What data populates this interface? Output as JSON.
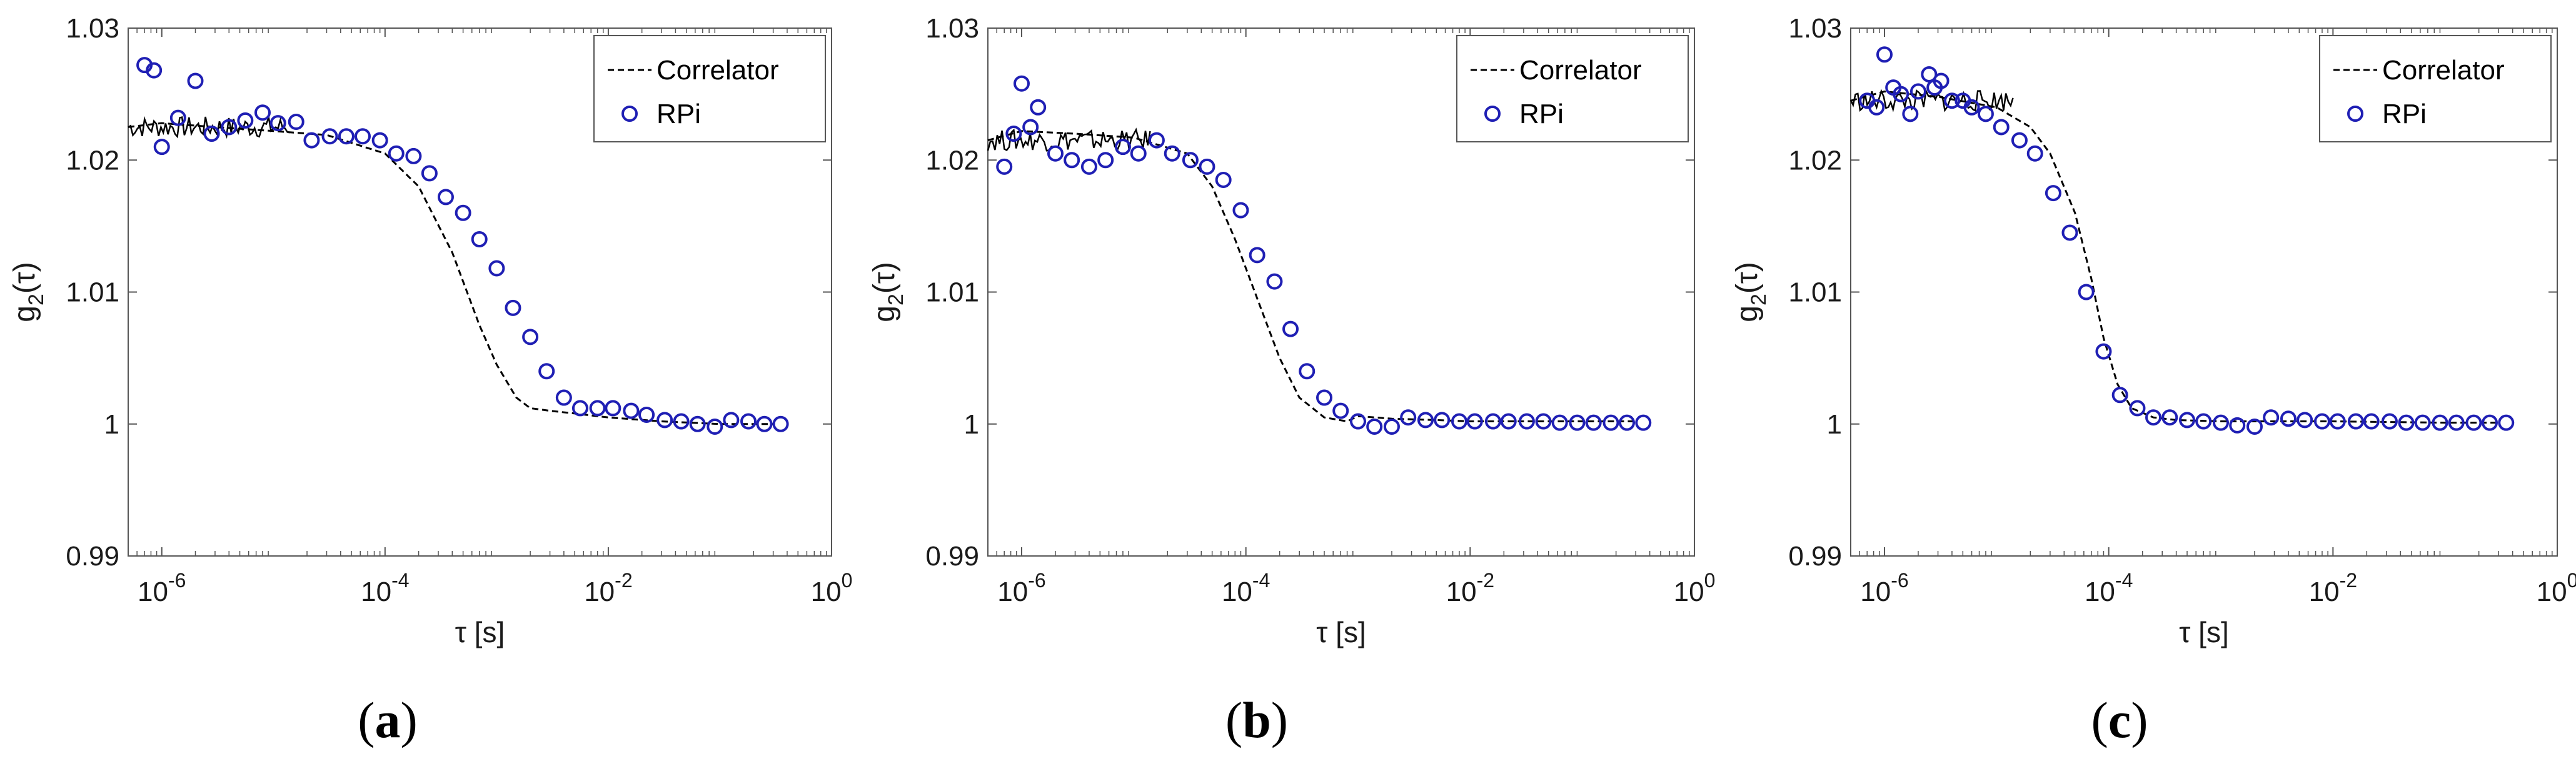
{
  "colors": {
    "correlator": "#000000",
    "rpi": "#1f1fb4",
    "axis": "#555555"
  },
  "chart_data": [
    {
      "type": "scatter",
      "panel_label": "a",
      "xlabel": "τ [s]",
      "ylabel_main": "g",
      "ylabel_sub": "2",
      "ylabel_arg": "(τ)",
      "xscale": "log",
      "xlim": [
        5e-07,
        1
      ],
      "ylim": [
        0.99,
        1.03
      ],
      "yticks": [
        0.99,
        1,
        1.01,
        1.02,
        1.03
      ],
      "ytick_labels": [
        "0.99",
        "1",
        "1.01",
        "1.02",
        "1.03"
      ],
      "xticks": [
        1e-06,
        0.0001,
        0.01,
        1
      ],
      "xtick_bases": [
        "10",
        "10",
        "10",
        "10"
      ],
      "xtick_exps": [
        "-6",
        "-4",
        "-2",
        "0"
      ],
      "legend_position": "top-right",
      "series": [
        {
          "name": "Correlator",
          "style": "dashed-line",
          "decay_time": 0.0007,
          "x": [
            5e-07,
            1e-06,
            3e-06,
            1e-05,
            3e-05,
            0.0001,
            0.0002,
            0.0004,
            0.0007,
            0.001,
            0.0015,
            0.002,
            0.003,
            0.005,
            0.01,
            0.03,
            0.1,
            0.3
          ],
          "y": [
            1.0225,
            1.0228,
            1.0225,
            1.0222,
            1.0219,
            1.0205,
            1.018,
            1.013,
            1.0075,
            1.0045,
            1.002,
            1.0012,
            1.001,
            1.0008,
            1.0005,
            1.0002,
            1.0,
            1.0
          ]
        },
        {
          "name": "RPi",
          "style": "open-circle",
          "x": [
            7e-07,
            8.5e-07,
            1e-06,
            1.4e-06,
            2e-06,
            2.8e-06,
            4e-06,
            5.6e-06,
            8e-06,
            1.1e-05,
            1.6e-05,
            2.2e-05,
            3.2e-05,
            4.5e-05,
            6.3e-05,
            9e-05,
            0.000126,
            0.00018,
            0.00025,
            0.00035,
            0.0005,
            0.0007,
            0.001,
            0.0014,
            0.002,
            0.0028,
            0.004,
            0.0056,
            0.008,
            0.011,
            0.016,
            0.022,
            0.032,
            0.045,
            0.063,
            0.09,
            0.126,
            0.18,
            0.25,
            0.35
          ],
          "y": [
            1.0272,
            1.0268,
            1.021,
            1.0232,
            1.026,
            1.022,
            1.0225,
            1.023,
            1.0236,
            1.0228,
            1.0229,
            1.0215,
            1.0218,
            1.0218,
            1.0218,
            1.0215,
            1.0205,
            1.0203,
            1.019,
            1.0172,
            1.016,
            1.014,
            1.0118,
            1.0088,
            1.0066,
            1.004,
            1.002,
            1.0012,
            1.0012,
            1.0012,
            1.001,
            1.0007,
            1.0003,
            1.0002,
            1.0,
            0.9998,
            1.0003,
            1.0002,
            1.0,
            1.0
          ]
        }
      ]
    },
    {
      "type": "scatter",
      "panel_label": "b",
      "xlabel": "τ [s]",
      "ylabel_main": "g",
      "ylabel_sub": "2",
      "ylabel_arg": "(τ)",
      "xscale": "log",
      "xlim": [
        5e-07,
        1
      ],
      "ylim": [
        0.99,
        1.03
      ],
      "yticks": [
        0.99,
        1,
        1.01,
        1.02,
        1.03
      ],
      "ytick_labels": [
        "0.99",
        "1",
        "1.01",
        "1.02",
        "1.03"
      ],
      "xticks": [
        1e-06,
        0.0001,
        0.01,
        1
      ],
      "xtick_bases": [
        "10",
        "10",
        "10",
        "10"
      ],
      "xtick_exps": [
        "-6",
        "-4",
        "-2",
        "0"
      ],
      "legend_position": "top-right",
      "series": [
        {
          "name": "Correlator",
          "style": "dashed-line",
          "decay_time": 0.00012,
          "x": [
            5e-07,
            1e-06,
            3e-06,
            1e-05,
            3e-05,
            5e-05,
            8e-05,
            0.00012,
            0.0002,
            0.0003,
            0.0005,
            0.0008,
            0.001,
            0.002,
            0.005,
            0.01,
            0.1,
            0.3
          ],
          "y": [
            1.0215,
            1.0222,
            1.022,
            1.0217,
            1.0205,
            1.018,
            1.014,
            1.01,
            1.005,
            1.002,
            1.0005,
            1.0002,
            1.0006,
            1.0004,
            1.0003,
            1.0002,
            1.0002,
            1.0002
          ]
        },
        {
          "name": "RPi",
          "style": "open-circle",
          "x": [
            7e-07,
            8.5e-07,
            1e-06,
            1.2e-06,
            1.4e-06,
            2e-06,
            2.8e-06,
            4e-06,
            5.6e-06,
            8e-06,
            1.1e-05,
            1.6e-05,
            2.2e-05,
            3.2e-05,
            4.5e-05,
            6.3e-05,
            9e-05,
            0.000126,
            0.00018,
            0.00025,
            0.00035,
            0.0005,
            0.0007,
            0.001,
            0.0014,
            0.002,
            0.0028,
            0.004,
            0.0056,
            0.008,
            0.011,
            0.016,
            0.022,
            0.032,
            0.045,
            0.063,
            0.09,
            0.126,
            0.18,
            0.25,
            0.35
          ],
          "y": [
            1.0195,
            1.022,
            1.0258,
            1.0225,
            1.024,
            1.0205,
            1.02,
            1.0195,
            1.02,
            1.021,
            1.0205,
            1.0215,
            1.0205,
            1.02,
            1.0195,
            1.0185,
            1.0162,
            1.0128,
            1.0108,
            1.0072,
            1.004,
            1.002,
            1.001,
            1.0002,
            0.9998,
            0.9998,
            1.0005,
            1.0003,
            1.0003,
            1.0002,
            1.0002,
            1.0002,
            1.0002,
            1.0002,
            1.0002,
            1.0001,
            1.0001,
            1.0001,
            1.0001,
            1.0001,
            1.0001
          ]
        }
      ]
    },
    {
      "type": "scatter",
      "panel_label": "c",
      "xlabel": "τ [s]",
      "ylabel_main": "g",
      "ylabel_sub": "2",
      "ylabel_arg": "(τ)",
      "xscale": "log",
      "xlim": [
        5e-07,
        1
      ],
      "ylim": [
        0.99,
        1.03
      ],
      "yticks": [
        0.99,
        1,
        1.01,
        1.02,
        1.03
      ],
      "ytick_labels": [
        "0.99",
        "1",
        "1.01",
        "1.02",
        "1.03"
      ],
      "xticks": [
        1e-06,
        0.0001,
        0.01,
        1
      ],
      "xtick_bases": [
        "10",
        "10",
        "10",
        "10"
      ],
      "xtick_exps": [
        "-6",
        "-4",
        "-2",
        "0"
      ],
      "legend_position": "top-right",
      "series": [
        {
          "name": "Correlator",
          "style": "dashed-line",
          "decay_time": 8e-05,
          "x": [
            5e-07,
            1e-06,
            3e-06,
            1e-05,
            2e-05,
            3e-05,
            5e-05,
            7e-05,
            9e-05,
            0.00012,
            0.00016,
            0.00025,
            0.0004,
            0.001,
            0.003,
            0.01,
            0.1,
            0.3
          ],
          "y": [
            1.0245,
            1.0252,
            1.0248,
            1.024,
            1.0225,
            1.0205,
            1.016,
            1.011,
            1.0065,
            1.003,
            1.0012,
            1.0005,
            1.0003,
            1.0002,
            1.0002,
            1.0002,
            1.0001,
            1.0001
          ]
        },
        {
          "name": "RPi",
          "style": "open-circle",
          "x": [
            7e-07,
            8.5e-07,
            1e-06,
            1.2e-06,
            1.4e-06,
            1.7e-06,
            2e-06,
            2.5e-06,
            2.8e-06,
            3.2e-06,
            4e-06,
            5e-06,
            6e-06,
            8e-06,
            1.1e-05,
            1.6e-05,
            2.2e-05,
            3.2e-05,
            4.5e-05,
            6.3e-05,
            9e-05,
            0.000126,
            0.00018,
            0.00025,
            0.00035,
            0.0005,
            0.0007,
            0.001,
            0.0014,
            0.002,
            0.0028,
            0.004,
            0.0056,
            0.008,
            0.011,
            0.016,
            0.022,
            0.032,
            0.045,
            0.063,
            0.09,
            0.126,
            0.18,
            0.25,
            0.35
          ],
          "y": [
            1.0245,
            1.024,
            1.028,
            1.0255,
            1.025,
            1.0235,
            1.0252,
            1.0265,
            1.0255,
            1.026,
            1.0245,
            1.0245,
            1.024,
            1.0235,
            1.0225,
            1.0215,
            1.0205,
            1.0175,
            1.0145,
            1.01,
            1.0055,
            1.0022,
            1.0012,
            1.0005,
            1.0005,
            1.0003,
            1.0002,
            1.0001,
            0.9999,
            0.9998,
            1.0005,
            1.0004,
            1.0003,
            1.0002,
            1.0002,
            1.0002,
            1.0002,
            1.0002,
            1.0001,
            1.0001,
            1.0001,
            1.0001,
            1.0001,
            1.0001,
            1.0001
          ]
        }
      ]
    }
  ]
}
